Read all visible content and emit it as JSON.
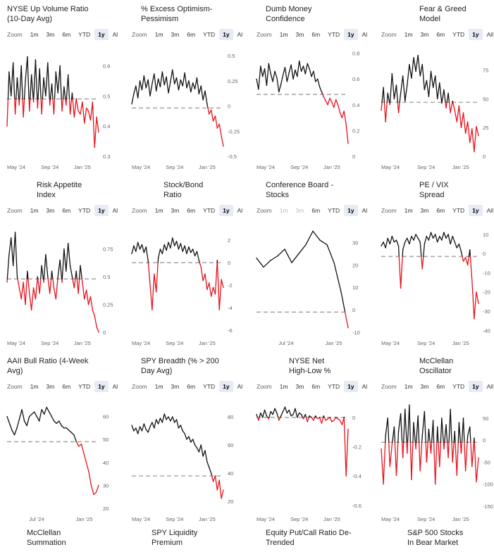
{
  "zoom": {
    "label": "Zoom",
    "buttons": [
      "1m",
      "3m",
      "6m",
      "YTD",
      "1y",
      "Al"
    ],
    "buttons_last_col": [
      "1m",
      "3m",
      "6m",
      "YTD",
      "1y",
      "All"
    ],
    "active": "1y"
  },
  "colors": {
    "above": "#111111",
    "below": "#e8111b",
    "threshold": "#aaaaaa"
  },
  "footer_titles": [
    {
      "l1": "McClellan",
      "l2": "Summation"
    },
    {
      "l1": "SPY Liquidity",
      "l2": "Premium"
    },
    {
      "l1": "Equity Put/Call Ratio De-",
      "l2": "Trended"
    },
    {
      "l1": "S&P 500 Stocks",
      "l2": "In Bear Market"
    }
  ],
  "chart_data": [
    {
      "type": "line",
      "title_l1": "NYSE Up Volume Ratio",
      "title_l2": "(10-Day Avg)",
      "align": "left",
      "ylim": [
        0.3,
        0.65
      ],
      "yticks": [
        0.6,
        0.5,
        0.4,
        0.3
      ],
      "ytick_labels": [
        "0.6",
        "0.5",
        "0.4",
        "0.3"
      ],
      "xlabels": [
        {
          "label": "May '24",
          "t": 0.0
        },
        {
          "label": "Sep '24",
          "t": 0.37
        },
        {
          "label": "Jan '25",
          "t": 0.73
        }
      ],
      "threshold": 0.49,
      "values": [
        0.4,
        0.58,
        0.5,
        0.61,
        0.44,
        0.56,
        0.47,
        0.6,
        0.43,
        0.55,
        0.63,
        0.45,
        0.57,
        0.48,
        0.62,
        0.46,
        0.59,
        0.44,
        0.56,
        0.5,
        0.61,
        0.47,
        0.54,
        0.44,
        0.58,
        0.51,
        0.6,
        0.45,
        0.53,
        0.47,
        0.57,
        0.44,
        0.51,
        0.43,
        0.49,
        0.45,
        0.44,
        0.48,
        0.41,
        0.46,
        0.45,
        0.42,
        0.48,
        0.33,
        0.43,
        0.38
      ]
    },
    {
      "type": "line",
      "title_l1": "% Excess Optimism-",
      "title_l2": "Pessimism",
      "align": "left",
      "ylim": [
        -0.5,
        0.55
      ],
      "yticks": [
        0.5,
        0.25,
        0,
        -0.25,
        -0.5
      ],
      "ytick_labels": [
        "0.5",
        "0.25",
        "0",
        "-0.25",
        "-0.5"
      ],
      "xlabels": [
        {
          "label": "May '24",
          "t": 0.0
        },
        {
          "label": "Sep '24",
          "t": 0.37
        },
        {
          "label": "Jan '25",
          "t": 0.73
        }
      ],
      "threshold": -0.02,
      "values": [
        0.02,
        0.12,
        0.2,
        0.08,
        0.25,
        0.16,
        0.3,
        0.18,
        0.26,
        0.1,
        0.22,
        0.32,
        0.15,
        0.27,
        0.19,
        0.34,
        0.21,
        0.29,
        0.13,
        0.24,
        0.36,
        0.22,
        0.28,
        0.16,
        0.26,
        0.2,
        0.33,
        0.18,
        0.25,
        0.14,
        0.23,
        0.17,
        0.28,
        0.12,
        0.2,
        0.06,
        0.15,
        0.02,
        -0.08,
        -0.04,
        -0.15,
        -0.1,
        -0.22,
        -0.18,
        -0.3,
        -0.4
      ]
    },
    {
      "type": "line",
      "title_l1": "Dumb Money",
      "title_l2": "Confidence",
      "align": "left",
      "ylim": [
        0,
        0.82
      ],
      "yticks": [
        0.8,
        0.6,
        0.4,
        0.2,
        0
      ],
      "ytick_labels": [
        "0.8",
        "0.6",
        "0.4",
        "0.2",
        "0"
      ],
      "xlabels": [
        {
          "label": "May '24",
          "t": 0.0
        },
        {
          "label": "Sep '24",
          "t": 0.37
        },
        {
          "label": "Jan '25",
          "t": 0.73
        }
      ],
      "threshold": 0.48,
      "values": [
        0.6,
        0.52,
        0.7,
        0.62,
        0.68,
        0.55,
        0.72,
        0.64,
        0.58,
        0.66,
        0.61,
        0.5,
        0.56,
        0.63,
        0.69,
        0.58,
        0.65,
        0.71,
        0.6,
        0.67,
        0.62,
        0.74,
        0.66,
        0.7,
        0.64,
        0.72,
        0.68,
        0.62,
        0.66,
        0.58,
        0.6,
        0.54,
        0.5,
        0.46,
        0.43,
        0.4,
        0.45,
        0.42,
        0.38,
        0.44,
        0.4,
        0.34,
        0.3,
        0.35,
        0.25,
        0.1
      ]
    },
    {
      "type": "line",
      "title_l1": "Fear & Greed",
      "title_l2": "Model",
      "align": "center",
      "ylim": [
        0,
        92
      ],
      "yticks": [
        75,
        50,
        25,
        0
      ],
      "ytick_labels": [
        "75",
        "50",
        "25",
        "0"
      ],
      "xlabels": [
        {
          "label": "May '24",
          "t": 0.0
        },
        {
          "label": "Sep '24",
          "t": 0.37
        },
        {
          "label": "Jan '25",
          "t": 0.73
        }
      ],
      "threshold": 47,
      "values": [
        40,
        60,
        30,
        55,
        45,
        72,
        50,
        62,
        38,
        55,
        70,
        48,
        62,
        80,
        68,
        86,
        74,
        88,
        70,
        80,
        58,
        66,
        52,
        74,
        60,
        70,
        50,
        64,
        46,
        58,
        42,
        55,
        38,
        48,
        40,
        30,
        44,
        25,
        38,
        20,
        30,
        12,
        24,
        4,
        26,
        18
      ]
    },
    {
      "type": "line",
      "title_l1": "Risk Appetite",
      "title_l2": "Index",
      "align": "center",
      "ylim": [
        0,
        0.95
      ],
      "yticks": [
        0.75,
        0.5,
        0.25,
        0
      ],
      "ytick_labels": [
        "0.75",
        "0.5",
        "0.25",
        "0"
      ],
      "xlabels": [
        {
          "label": "May '24",
          "t": 0.0
        },
        {
          "label": "Sep '24",
          "t": 0.37
        },
        {
          "label": "Jan '25",
          "t": 0.73
        }
      ],
      "threshold": 0.48,
      "values": [
        0.45,
        0.7,
        0.85,
        0.6,
        0.9,
        0.5,
        0.4,
        0.3,
        0.45,
        0.25,
        0.55,
        0.35,
        0.2,
        0.4,
        0.3,
        0.5,
        0.35,
        0.6,
        0.45,
        0.7,
        0.5,
        0.35,
        0.55,
        0.4,
        0.3,
        0.5,
        0.65,
        0.45,
        0.75,
        0.55,
        0.8,
        0.6,
        0.5,
        0.4,
        0.55,
        0.35,
        0.6,
        0.45,
        0.3,
        0.38,
        0.25,
        0.32,
        0.2,
        0.15,
        0.05,
        0.0
      ]
    },
    {
      "type": "line",
      "title_l1": "Stock/Bond",
      "title_l2": "Ratio",
      "align": "center",
      "ylim": [
        -6.2,
        3.2
      ],
      "yticks": [
        2,
        0,
        -2,
        -4,
        -6
      ],
      "ytick_labels": [
        "2",
        "0",
        "-2",
        "-4",
        "-6"
      ],
      "xlabels": [
        {
          "label": "May '24",
          "t": 0.0
        },
        {
          "label": "Sep '24",
          "t": 0.37
        },
        {
          "label": "Jan '25",
          "t": 0.73
        }
      ],
      "threshold": 0.0,
      "values": [
        0.8,
        1.5,
        1.0,
        1.8,
        1.2,
        1.6,
        0.9,
        1.4,
        0.2,
        -2.0,
        -4.2,
        -1.0,
        -2.6,
        0.4,
        1.2,
        0.8,
        1.6,
        1.1,
        1.8,
        1.3,
        2.2,
        1.5,
        1.9,
        1.2,
        1.7,
        1.0,
        1.5,
        0.8,
        1.4,
        0.9,
        1.2,
        0.6,
        1.0,
        0.2,
        -0.4,
        -1.6,
        -1.0,
        -2.4,
        -1.8,
        -3.0,
        -2.2,
        -2.8,
        0.2,
        -4.2,
        -1.5,
        -2.2
      ]
    },
    {
      "type": "line",
      "title_l1": "Conference Board -",
      "title_l2": "Stocks",
      "align": "left",
      "ylim": [
        -10,
        37
      ],
      "yticks": [
        30,
        20,
        10,
        0,
        -10
      ],
      "ytick_labels": [
        "30",
        "20",
        "10",
        "0",
        "-10"
      ],
      "xlabels": [
        {
          "label": "Jul '24",
          "t": 0.24
        },
        {
          "label": "Jan '25",
          "t": 0.75
        }
      ],
      "threshold": -1.0,
      "values": [
        23,
        19,
        22,
        24,
        27,
        21,
        25,
        29,
        35,
        31,
        29,
        21,
        8,
        -8
      ]
    },
    {
      "type": "line",
      "title_l1": "PE / VIX",
      "title_l2": "Spread",
      "align": "center",
      "ylim": [
        -41,
        14
      ],
      "yticks": [
        10,
        0,
        -10,
        -20,
        -30,
        -40
      ],
      "ytick_labels": [
        "10",
        "0",
        "-10",
        "-20",
        "-30",
        "-40"
      ],
      "xlabels": [
        {
          "label": "May '24",
          "t": 0.0
        },
        {
          "label": "Sep '24",
          "t": 0.37
        },
        {
          "label": "Jan '25",
          "t": 0.73
        }
      ],
      "threshold": -1.5,
      "values": [
        4,
        6,
        3,
        8,
        5,
        9,
        6,
        7,
        4,
        -18,
        2,
        6,
        8,
        5,
        9,
        7,
        10,
        8,
        6,
        -8,
        5,
        9,
        7,
        11,
        8,
        10,
        6,
        9,
        7,
        11,
        8,
        10,
        5,
        9,
        6,
        3,
        5,
        1,
        -4,
        -2,
        -6,
        2,
        -14,
        -34,
        -20,
        -26
      ]
    },
    {
      "type": "line",
      "title_l1": "AAII Bull Ratio (4-Week",
      "title_l2": "Avg)",
      "align": "left",
      "ylim": [
        20,
        66
      ],
      "yticks": [
        60,
        50,
        40,
        30,
        20
      ],
      "ytick_labels": [
        "60",
        "50",
        "40",
        "30",
        "20"
      ],
      "xlabels": [
        {
          "label": "Jul '24",
          "t": 0.24
        },
        {
          "label": "Jan '25",
          "t": 0.75
        }
      ],
      "threshold": 49,
      "values": [
        60,
        57,
        54,
        52,
        55,
        59,
        63,
        58,
        56,
        60,
        61,
        62,
        60,
        58,
        63,
        61,
        64,
        62,
        60,
        58,
        57,
        58,
        56,
        55,
        55,
        54,
        53,
        52,
        49,
        47,
        48,
        44,
        40,
        36,
        30,
        26,
        27,
        30
      ]
    },
    {
      "type": "line",
      "title_l1": "SPY Breadth (% > 200",
      "title_l2": "Day Avg)",
      "align": "left",
      "ylim": [
        15,
        90
      ],
      "yticks": [
        80,
        60,
        40,
        20
      ],
      "ytick_labels": [
        "80",
        "60",
        "40",
        "20"
      ],
      "xlabels": [
        {
          "label": "May '24",
          "t": 0.0
        },
        {
          "label": "Sep '24",
          "t": 0.37
        },
        {
          "label": "Jan '25",
          "t": 0.73
        }
      ],
      "threshold": 38,
      "values": [
        74,
        70,
        72,
        68,
        73,
        70,
        75,
        71,
        69,
        73,
        76,
        72,
        78,
        75,
        79,
        76,
        82,
        78,
        80,
        77,
        80,
        76,
        78,
        72,
        74,
        70,
        68,
        64,
        66,
        62,
        64,
        60,
        58,
        55,
        60,
        52,
        56,
        48,
        44,
        40,
        34,
        38,
        28,
        35,
        22,
        28
      ]
    },
    {
      "type": "line",
      "title_l1": "NYSE Net",
      "title_l2": "High-Low %",
      "align": "center",
      "ylim": [
        -0.62,
        0.1
      ],
      "yticks": [
        0,
        -0.2,
        -0.4,
        -0.6
      ],
      "ytick_labels": [
        "0",
        "-0.2",
        "-0.4",
        "-0.6"
      ],
      "xlabels": [
        {
          "label": "May '24",
          "t": 0.0
        },
        {
          "label": "Sep '24",
          "t": 0.37
        },
        {
          "label": "Jan '25",
          "t": 0.73
        }
      ],
      "threshold": 0.0,
      "values": [
        0.02,
        -0.02,
        0.03,
        0.0,
        0.05,
        0.01,
        -0.01,
        0.04,
        0.02,
        0.06,
        0.03,
        -0.02,
        0.01,
        0.04,
        0.07,
        0.03,
        0.05,
        0.01,
        0.02,
        0.06,
        0.0,
        0.03,
        0.02,
        -0.01,
        0.02,
        -0.03,
        0.01,
        0.0,
        -0.02,
        0.01,
        -0.01,
        0.0,
        -0.04,
        0.01,
        -0.02,
        -0.01,
        0.0,
        -0.03,
        -0.02,
        0.0,
        -0.01,
        -0.02,
        -0.05,
        0.0,
        -0.4,
        -0.08
      ]
    },
    {
      "type": "line",
      "title_l1": "McClellan",
      "title_l2": "Oscillator",
      "align": "center",
      "ylim": [
        -155,
        85
      ],
      "yticks": [
        50,
        0,
        -50,
        -100,
        -150
      ],
      "ytick_labels": [
        "50",
        "0",
        "-50",
        "-100",
        "-150"
      ],
      "xlabels": [
        {
          "label": "May '24",
          "t": 0.0
        },
        {
          "label": "Sep '24",
          "t": 0.37
        },
        {
          "label": "Jan '25",
          "t": 0.73
        }
      ],
      "threshold": -5,
      "values": [
        -20,
        -100,
        10,
        50,
        -60,
        -10,
        30,
        -80,
        20,
        60,
        -40,
        70,
        -30,
        80,
        -90,
        40,
        -20,
        55,
        -70,
        10,
        65,
        -50,
        25,
        -30,
        45,
        -100,
        30,
        -60,
        50,
        -20,
        35,
        -40,
        70,
        -50,
        20,
        -80,
        40,
        -30,
        50,
        -70,
        10,
        30,
        -60,
        5,
        -95,
        -40
      ]
    }
  ]
}
